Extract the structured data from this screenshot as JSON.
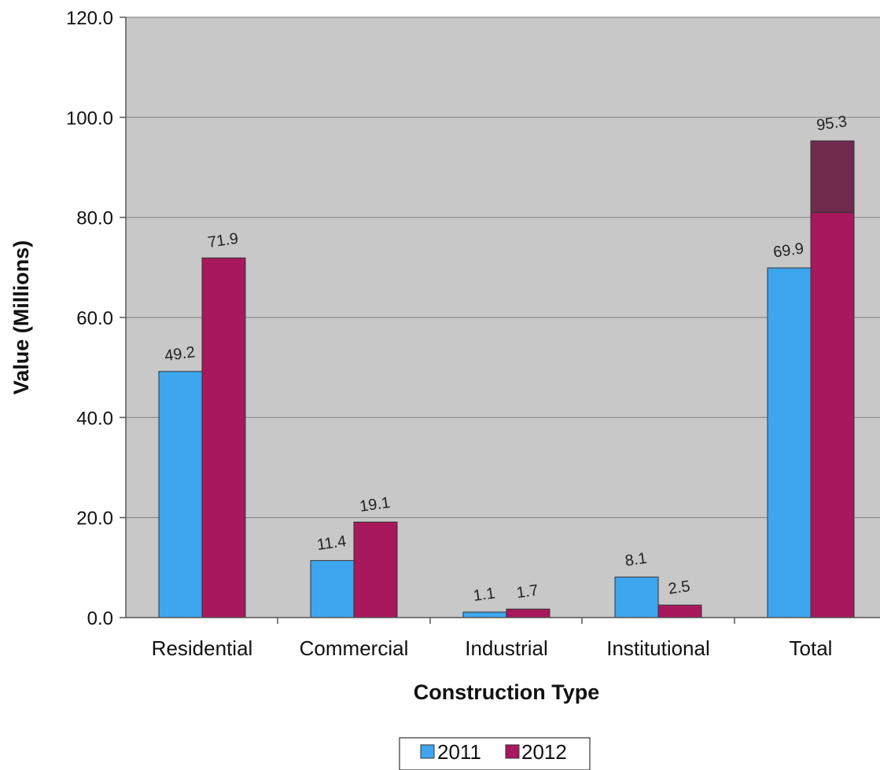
{
  "chart_data": {
    "type": "bar",
    "categories": [
      "Residential",
      "Commercial",
      "Industrial",
      "Institutional",
      "Total"
    ],
    "series": [
      {
        "name": "2011",
        "values": [
          49.2,
          11.4,
          1.1,
          8.1,
          69.9
        ],
        "color": "#3ea6ee"
      },
      {
        "name": "2012",
        "values": [
          71.9,
          19.1,
          1.7,
          2.5,
          95.3
        ],
        "color": "#a8185c"
      }
    ],
    "data_labels": {
      "2011": [
        "49.2",
        "11.4",
        "1.1",
        "8.1",
        "69.9"
      ],
      "2012": [
        "71.9",
        "19.1",
        "1.7",
        "2.5",
        "95.3"
      ]
    },
    "highlight_label_color": "#9b2458",
    "total_bar_top_color": "#6e2b4c",
    "total_bar_split_value": 81.0,
    "xlabel": "Construction Type",
    "ylabel": "Value (Millions)",
    "ylim": [
      0,
      120
    ],
    "yticks": [
      "0.0",
      "20.0",
      "40.0",
      "60.0",
      "80.0",
      "100.0",
      "120.0"
    ],
    "ytick_values": [
      0,
      20,
      40,
      60,
      80,
      100,
      120
    ],
    "grid": true,
    "plot_background": "#c8c8c8",
    "legend_position": "bottom-center"
  }
}
